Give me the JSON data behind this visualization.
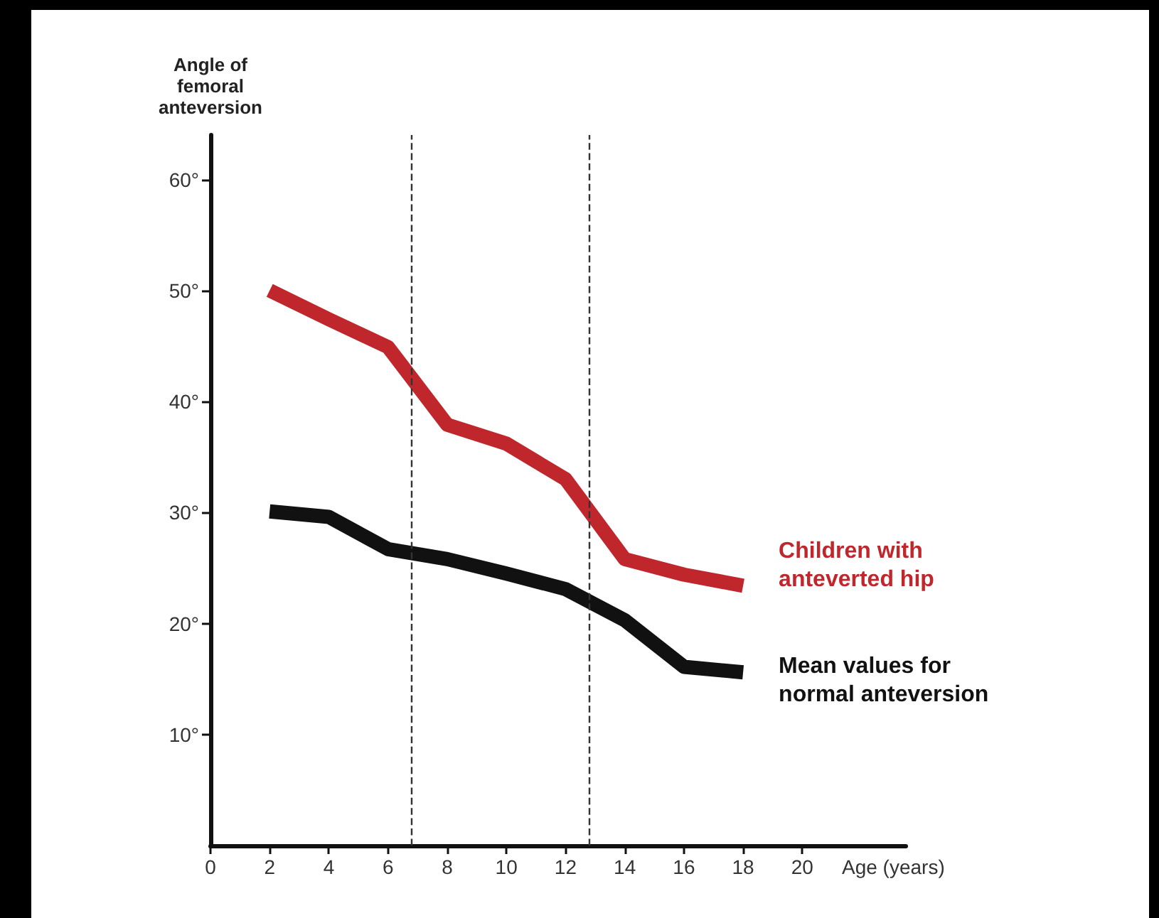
{
  "chart_data": {
    "type": "line",
    "xlabel": "Age (years)",
    "ylabel": "Angle of femoral anteversion",
    "x": [
      2,
      4,
      6,
      8,
      10,
      12,
      14,
      16,
      18
    ],
    "series": [
      {
        "name": "Children with anteverted hip",
        "color": "#c0272d",
        "values": [
          50,
          47.4,
          44.9,
          37.9,
          36.2,
          33,
          25.8,
          24.4,
          23.4
        ]
      },
      {
        "name": "Mean values for normal anteversion",
        "color": "#111111",
        "values": [
          30.1,
          29.6,
          26.7,
          25.8,
          24.5,
          23.1,
          20.3,
          16.1,
          15.6
        ]
      }
    ],
    "xlim": [
      0,
      23.5
    ],
    "xticks": [
      0,
      2,
      4,
      6,
      8,
      10,
      12,
      14,
      16,
      18,
      20
    ],
    "ylim": [
      0,
      64
    ],
    "yticks": [
      {
        "value": 10,
        "label": "10°"
      },
      {
        "value": 20,
        "label": "20°"
      },
      {
        "value": 30,
        "label": "30°"
      },
      {
        "value": 40,
        "label": "40°"
      },
      {
        "value": 50,
        "label": "50°"
      },
      {
        "value": 60,
        "label": "60°"
      }
    ],
    "ref_lines": [
      {
        "axis": "x",
        "value": 6.8,
        "line_style": "dashed"
      },
      {
        "axis": "x",
        "value": 12.8,
        "line_style": "dashed"
      }
    ],
    "legend": false,
    "grid": false,
    "marker": "none",
    "line_style": "solid"
  }
}
